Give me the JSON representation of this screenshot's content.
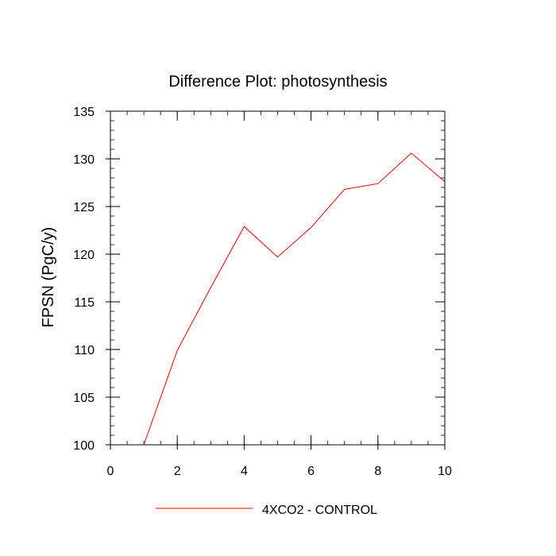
{
  "chart_data": {
    "type": "line",
    "title": "Difference Plot: photosynthesis",
    "xlabel": "",
    "ylabel": "FPSN  (PgC/y)",
    "xlim": [
      0,
      10
    ],
    "ylim": [
      100,
      135
    ],
    "xticks": [
      "0",
      "2",
      "4",
      "6",
      "8",
      "10"
    ],
    "yticks": [
      "100",
      "105",
      "110",
      "115",
      "120",
      "125",
      "130",
      "135"
    ],
    "grid": false,
    "legend_position": "bottom",
    "series": [
      {
        "name": "4XCO2 - CONTROL",
        "color": "#ff0000",
        "x": [
          1,
          2,
          3,
          4,
          5,
          6,
          7,
          8,
          9,
          10
        ],
        "y": [
          100.0,
          109.9,
          116.5,
          122.9,
          119.7,
          122.8,
          126.8,
          127.4,
          130.6,
          127.6
        ]
      }
    ]
  }
}
